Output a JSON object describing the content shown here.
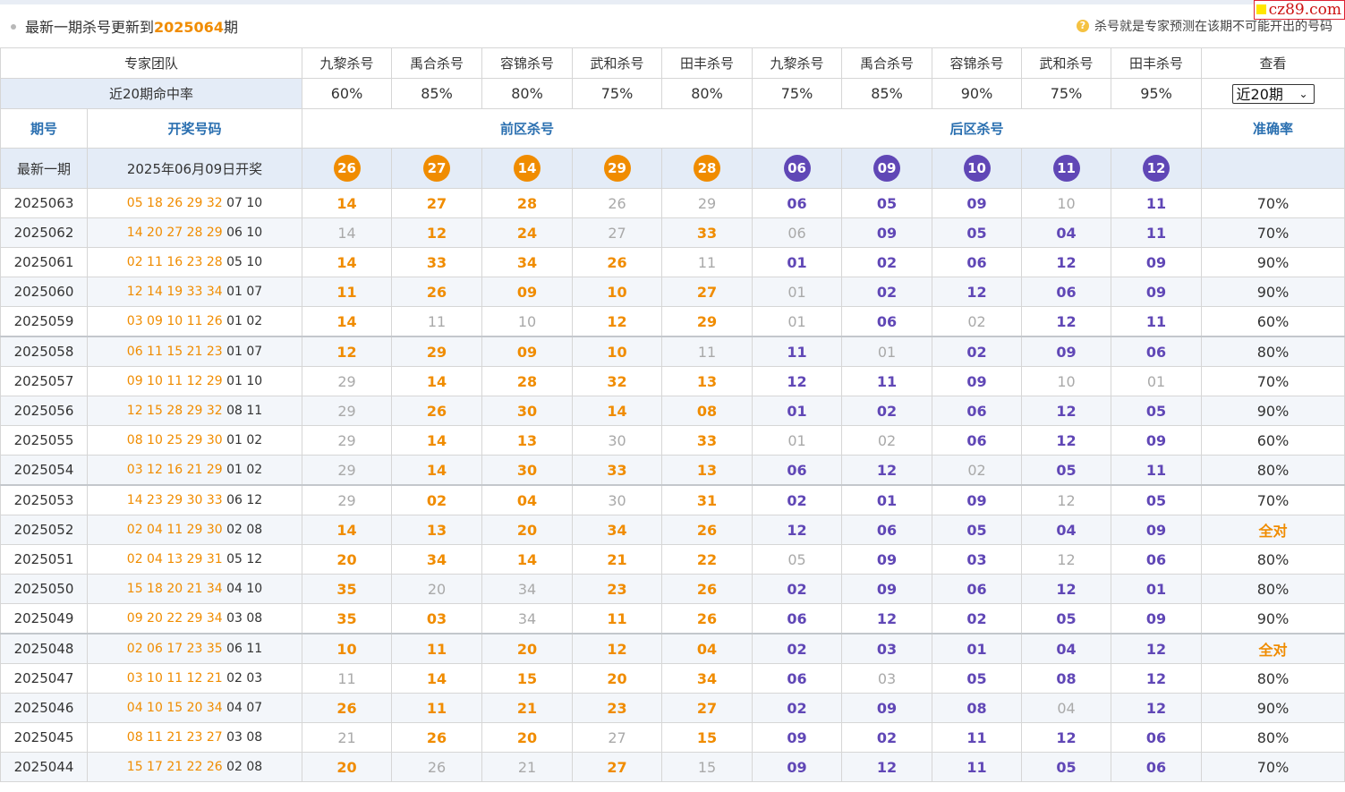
{
  "header": {
    "prefix": "最新一期杀号更新到",
    "issue": "2025064",
    "suffix": "期",
    "note": "杀号就是专家预测在该期不可能开出的号码",
    "watermark": "cz89.com"
  },
  "experts": {
    "team_label": "专家团队",
    "names": [
      "九黎杀号",
      "禹合杀号",
      "容锦杀号",
      "武和杀号",
      "田丰杀号",
      "九黎杀号",
      "禹合杀号",
      "容锦杀号",
      "武和杀号",
      "田丰杀号"
    ],
    "view_label": "查看"
  },
  "hit_rate": {
    "label": "近20期命中率",
    "values": [
      "60%",
      "85%",
      "80%",
      "75%",
      "80%",
      "75%",
      "85%",
      "90%",
      "75%",
      "95%"
    ],
    "period_select": "近20期"
  },
  "sections": {
    "issue": "期号",
    "draw": "开奖号码",
    "front": "前区杀号",
    "back": "后区杀号",
    "accuracy": "准确率"
  },
  "latest": {
    "label": "最新一期",
    "draw_date": "2025年06月09日开奖",
    "front": [
      "26",
      "27",
      "14",
      "29",
      "28"
    ],
    "back": [
      "06",
      "09",
      "10",
      "11",
      "12"
    ]
  },
  "rows": [
    {
      "issue": "2025063",
      "front": "05 18 26 29 32",
      "back": "07 10",
      "kills": [
        [
          "14",
          "f"
        ],
        [
          "27",
          "f"
        ],
        [
          "28",
          "f"
        ],
        [
          "26",
          "g"
        ],
        [
          "29",
          "g"
        ],
        [
          "06",
          "b"
        ],
        [
          "05",
          "b"
        ],
        [
          "09",
          "b"
        ],
        [
          "10",
          "g"
        ],
        [
          "11",
          "b"
        ]
      ],
      "acc": "70%"
    },
    {
      "issue": "2025062",
      "front": "14 20 27 28 29",
      "back": "06 10",
      "kills": [
        [
          "14",
          "g"
        ],
        [
          "12",
          "f"
        ],
        [
          "24",
          "f"
        ],
        [
          "27",
          "g"
        ],
        [
          "33",
          "f"
        ],
        [
          "06",
          "g"
        ],
        [
          "09",
          "b"
        ],
        [
          "05",
          "b"
        ],
        [
          "04",
          "b"
        ],
        [
          "11",
          "b"
        ]
      ],
      "acc": "70%"
    },
    {
      "issue": "2025061",
      "front": "02 11 16 23 28",
      "back": "05 10",
      "kills": [
        [
          "14",
          "f"
        ],
        [
          "33",
          "f"
        ],
        [
          "34",
          "f"
        ],
        [
          "26",
          "f"
        ],
        [
          "11",
          "g"
        ],
        [
          "01",
          "b"
        ],
        [
          "02",
          "b"
        ],
        [
          "06",
          "b"
        ],
        [
          "12",
          "b"
        ],
        [
          "09",
          "b"
        ]
      ],
      "acc": "90%"
    },
    {
      "issue": "2025060",
      "front": "12 14 19 33 34",
      "back": "01 07",
      "kills": [
        [
          "11",
          "f"
        ],
        [
          "26",
          "f"
        ],
        [
          "09",
          "f"
        ],
        [
          "10",
          "f"
        ],
        [
          "27",
          "f"
        ],
        [
          "01",
          "g"
        ],
        [
          "02",
          "b"
        ],
        [
          "12",
          "b"
        ],
        [
          "06",
          "b"
        ],
        [
          "09",
          "b"
        ]
      ],
      "acc": "90%"
    },
    {
      "issue": "2025059",
      "front": "03 09 10 11 26",
      "back": "01 02",
      "kills": [
        [
          "14",
          "f"
        ],
        [
          "11",
          "g"
        ],
        [
          "10",
          "g"
        ],
        [
          "12",
          "f"
        ],
        [
          "29",
          "f"
        ],
        [
          "01",
          "g"
        ],
        [
          "06",
          "b"
        ],
        [
          "02",
          "g"
        ],
        [
          "12",
          "b"
        ],
        [
          "11",
          "b"
        ]
      ],
      "acc": "60%"
    },
    {
      "issue": "2025058",
      "front": "06 11 15 21 23",
      "back": "01 07",
      "kills": [
        [
          "12",
          "f"
        ],
        [
          "29",
          "f"
        ],
        [
          "09",
          "f"
        ],
        [
          "10",
          "f"
        ],
        [
          "11",
          "g"
        ],
        [
          "11",
          "b"
        ],
        [
          "01",
          "g"
        ],
        [
          "02",
          "b"
        ],
        [
          "09",
          "b"
        ],
        [
          "06",
          "b"
        ]
      ],
      "acc": "80%"
    },
    {
      "issue": "2025057",
      "front": "09 10 11 12 29",
      "back": "01 10",
      "kills": [
        [
          "29",
          "g"
        ],
        [
          "14",
          "f"
        ],
        [
          "28",
          "f"
        ],
        [
          "32",
          "f"
        ],
        [
          "13",
          "f"
        ],
        [
          "12",
          "b"
        ],
        [
          "11",
          "b"
        ],
        [
          "09",
          "b"
        ],
        [
          "10",
          "g"
        ],
        [
          "01",
          "g"
        ]
      ],
      "acc": "70%"
    },
    {
      "issue": "2025056",
      "front": "12 15 28 29 32",
      "back": "08 11",
      "kills": [
        [
          "29",
          "g"
        ],
        [
          "26",
          "f"
        ],
        [
          "30",
          "f"
        ],
        [
          "14",
          "f"
        ],
        [
          "08",
          "f"
        ],
        [
          "01",
          "b"
        ],
        [
          "02",
          "b"
        ],
        [
          "06",
          "b"
        ],
        [
          "12",
          "b"
        ],
        [
          "05",
          "b"
        ]
      ],
      "acc": "90%"
    },
    {
      "issue": "2025055",
      "front": "08 10 25 29 30",
      "back": "01 02",
      "kills": [
        [
          "29",
          "g"
        ],
        [
          "14",
          "f"
        ],
        [
          "13",
          "f"
        ],
        [
          "30",
          "g"
        ],
        [
          "33",
          "f"
        ],
        [
          "01",
          "g"
        ],
        [
          "02",
          "g"
        ],
        [
          "06",
          "b"
        ],
        [
          "12",
          "b"
        ],
        [
          "09",
          "b"
        ]
      ],
      "acc": "60%"
    },
    {
      "issue": "2025054",
      "front": "03 12 16 21 29",
      "back": "01 02",
      "kills": [
        [
          "29",
          "g"
        ],
        [
          "14",
          "f"
        ],
        [
          "30",
          "f"
        ],
        [
          "33",
          "f"
        ],
        [
          "13",
          "f"
        ],
        [
          "06",
          "b"
        ],
        [
          "12",
          "b"
        ],
        [
          "02",
          "g"
        ],
        [
          "05",
          "b"
        ],
        [
          "11",
          "b"
        ]
      ],
      "acc": "80%"
    },
    {
      "issue": "2025053",
      "front": "14 23 29 30 33",
      "back": "06 12",
      "kills": [
        [
          "29",
          "g"
        ],
        [
          "02",
          "f"
        ],
        [
          "04",
          "f"
        ],
        [
          "30",
          "g"
        ],
        [
          "31",
          "f"
        ],
        [
          "02",
          "b"
        ],
        [
          "01",
          "b"
        ],
        [
          "09",
          "b"
        ],
        [
          "12",
          "g"
        ],
        [
          "05",
          "b"
        ]
      ],
      "acc": "70%"
    },
    {
      "issue": "2025052",
      "front": "02 04 11 29 30",
      "back": "02 08",
      "kills": [
        [
          "14",
          "f"
        ],
        [
          "13",
          "f"
        ],
        [
          "20",
          "f"
        ],
        [
          "34",
          "f"
        ],
        [
          "26",
          "f"
        ],
        [
          "12",
          "b"
        ],
        [
          "06",
          "b"
        ],
        [
          "05",
          "b"
        ],
        [
          "04",
          "b"
        ],
        [
          "09",
          "b"
        ]
      ],
      "acc": "全对"
    },
    {
      "issue": "2025051",
      "front": "02 04 13 29 31",
      "back": "05 12",
      "kills": [
        [
          "20",
          "f"
        ],
        [
          "34",
          "f"
        ],
        [
          "14",
          "f"
        ],
        [
          "21",
          "f"
        ],
        [
          "22",
          "f"
        ],
        [
          "05",
          "g"
        ],
        [
          "09",
          "b"
        ],
        [
          "03",
          "b"
        ],
        [
          "12",
          "g"
        ],
        [
          "06",
          "b"
        ]
      ],
      "acc": "80%"
    },
    {
      "issue": "2025050",
      "front": "15 18 20 21 34",
      "back": "04 10",
      "kills": [
        [
          "35",
          "f"
        ],
        [
          "20",
          "g"
        ],
        [
          "34",
          "g"
        ],
        [
          "23",
          "f"
        ],
        [
          "26",
          "f"
        ],
        [
          "02",
          "b"
        ],
        [
          "09",
          "b"
        ],
        [
          "06",
          "b"
        ],
        [
          "12",
          "b"
        ],
        [
          "01",
          "b"
        ]
      ],
      "acc": "80%"
    },
    {
      "issue": "2025049",
      "front": "09 20 22 29 34",
      "back": "03 08",
      "kills": [
        [
          "35",
          "f"
        ],
        [
          "03",
          "f"
        ],
        [
          "34",
          "g"
        ],
        [
          "11",
          "f"
        ],
        [
          "26",
          "f"
        ],
        [
          "06",
          "b"
        ],
        [
          "12",
          "b"
        ],
        [
          "02",
          "b"
        ],
        [
          "05",
          "b"
        ],
        [
          "09",
          "b"
        ]
      ],
      "acc": "90%"
    },
    {
      "issue": "2025048",
      "front": "02 06 17 23 35",
      "back": "06 11",
      "kills": [
        [
          "10",
          "f"
        ],
        [
          "11",
          "f"
        ],
        [
          "20",
          "f"
        ],
        [
          "12",
          "f"
        ],
        [
          "04",
          "f"
        ],
        [
          "02",
          "b"
        ],
        [
          "03",
          "b"
        ],
        [
          "01",
          "b"
        ],
        [
          "04",
          "b"
        ],
        [
          "12",
          "b"
        ]
      ],
      "acc": "全对"
    },
    {
      "issue": "2025047",
      "front": "03 10 11 12 21",
      "back": "02 03",
      "kills": [
        [
          "11",
          "g"
        ],
        [
          "14",
          "f"
        ],
        [
          "15",
          "f"
        ],
        [
          "20",
          "f"
        ],
        [
          "34",
          "f"
        ],
        [
          "06",
          "b"
        ],
        [
          "03",
          "g"
        ],
        [
          "05",
          "b"
        ],
        [
          "08",
          "b"
        ],
        [
          "12",
          "b"
        ]
      ],
      "acc": "80%"
    },
    {
      "issue": "2025046",
      "front": "04 10 15 20 34",
      "back": "04 07",
      "kills": [
        [
          "26",
          "f"
        ],
        [
          "11",
          "f"
        ],
        [
          "21",
          "f"
        ],
        [
          "23",
          "f"
        ],
        [
          "27",
          "f"
        ],
        [
          "02",
          "b"
        ],
        [
          "09",
          "b"
        ],
        [
          "08",
          "b"
        ],
        [
          "04",
          "g"
        ],
        [
          "12",
          "b"
        ]
      ],
      "acc": "90%"
    },
    {
      "issue": "2025045",
      "front": "08 11 21 23 27",
      "back": "03 08",
      "kills": [
        [
          "21",
          "g"
        ],
        [
          "26",
          "f"
        ],
        [
          "20",
          "f"
        ],
        [
          "27",
          "g"
        ],
        [
          "15",
          "f"
        ],
        [
          "09",
          "b"
        ],
        [
          "02",
          "b"
        ],
        [
          "11",
          "b"
        ],
        [
          "12",
          "b"
        ],
        [
          "06",
          "b"
        ]
      ],
      "acc": "80%"
    },
    {
      "issue": "2025044",
      "front": "15 17 21 22 26",
      "back": "02 08",
      "kills": [
        [
          "20",
          "f"
        ],
        [
          "26",
          "g"
        ],
        [
          "21",
          "g"
        ],
        [
          "27",
          "f"
        ],
        [
          "15",
          "g"
        ],
        [
          "09",
          "b"
        ],
        [
          "12",
          "b"
        ],
        [
          "11",
          "b"
        ],
        [
          "05",
          "b"
        ],
        [
          "06",
          "b"
        ]
      ],
      "acc": "70%"
    }
  ]
}
